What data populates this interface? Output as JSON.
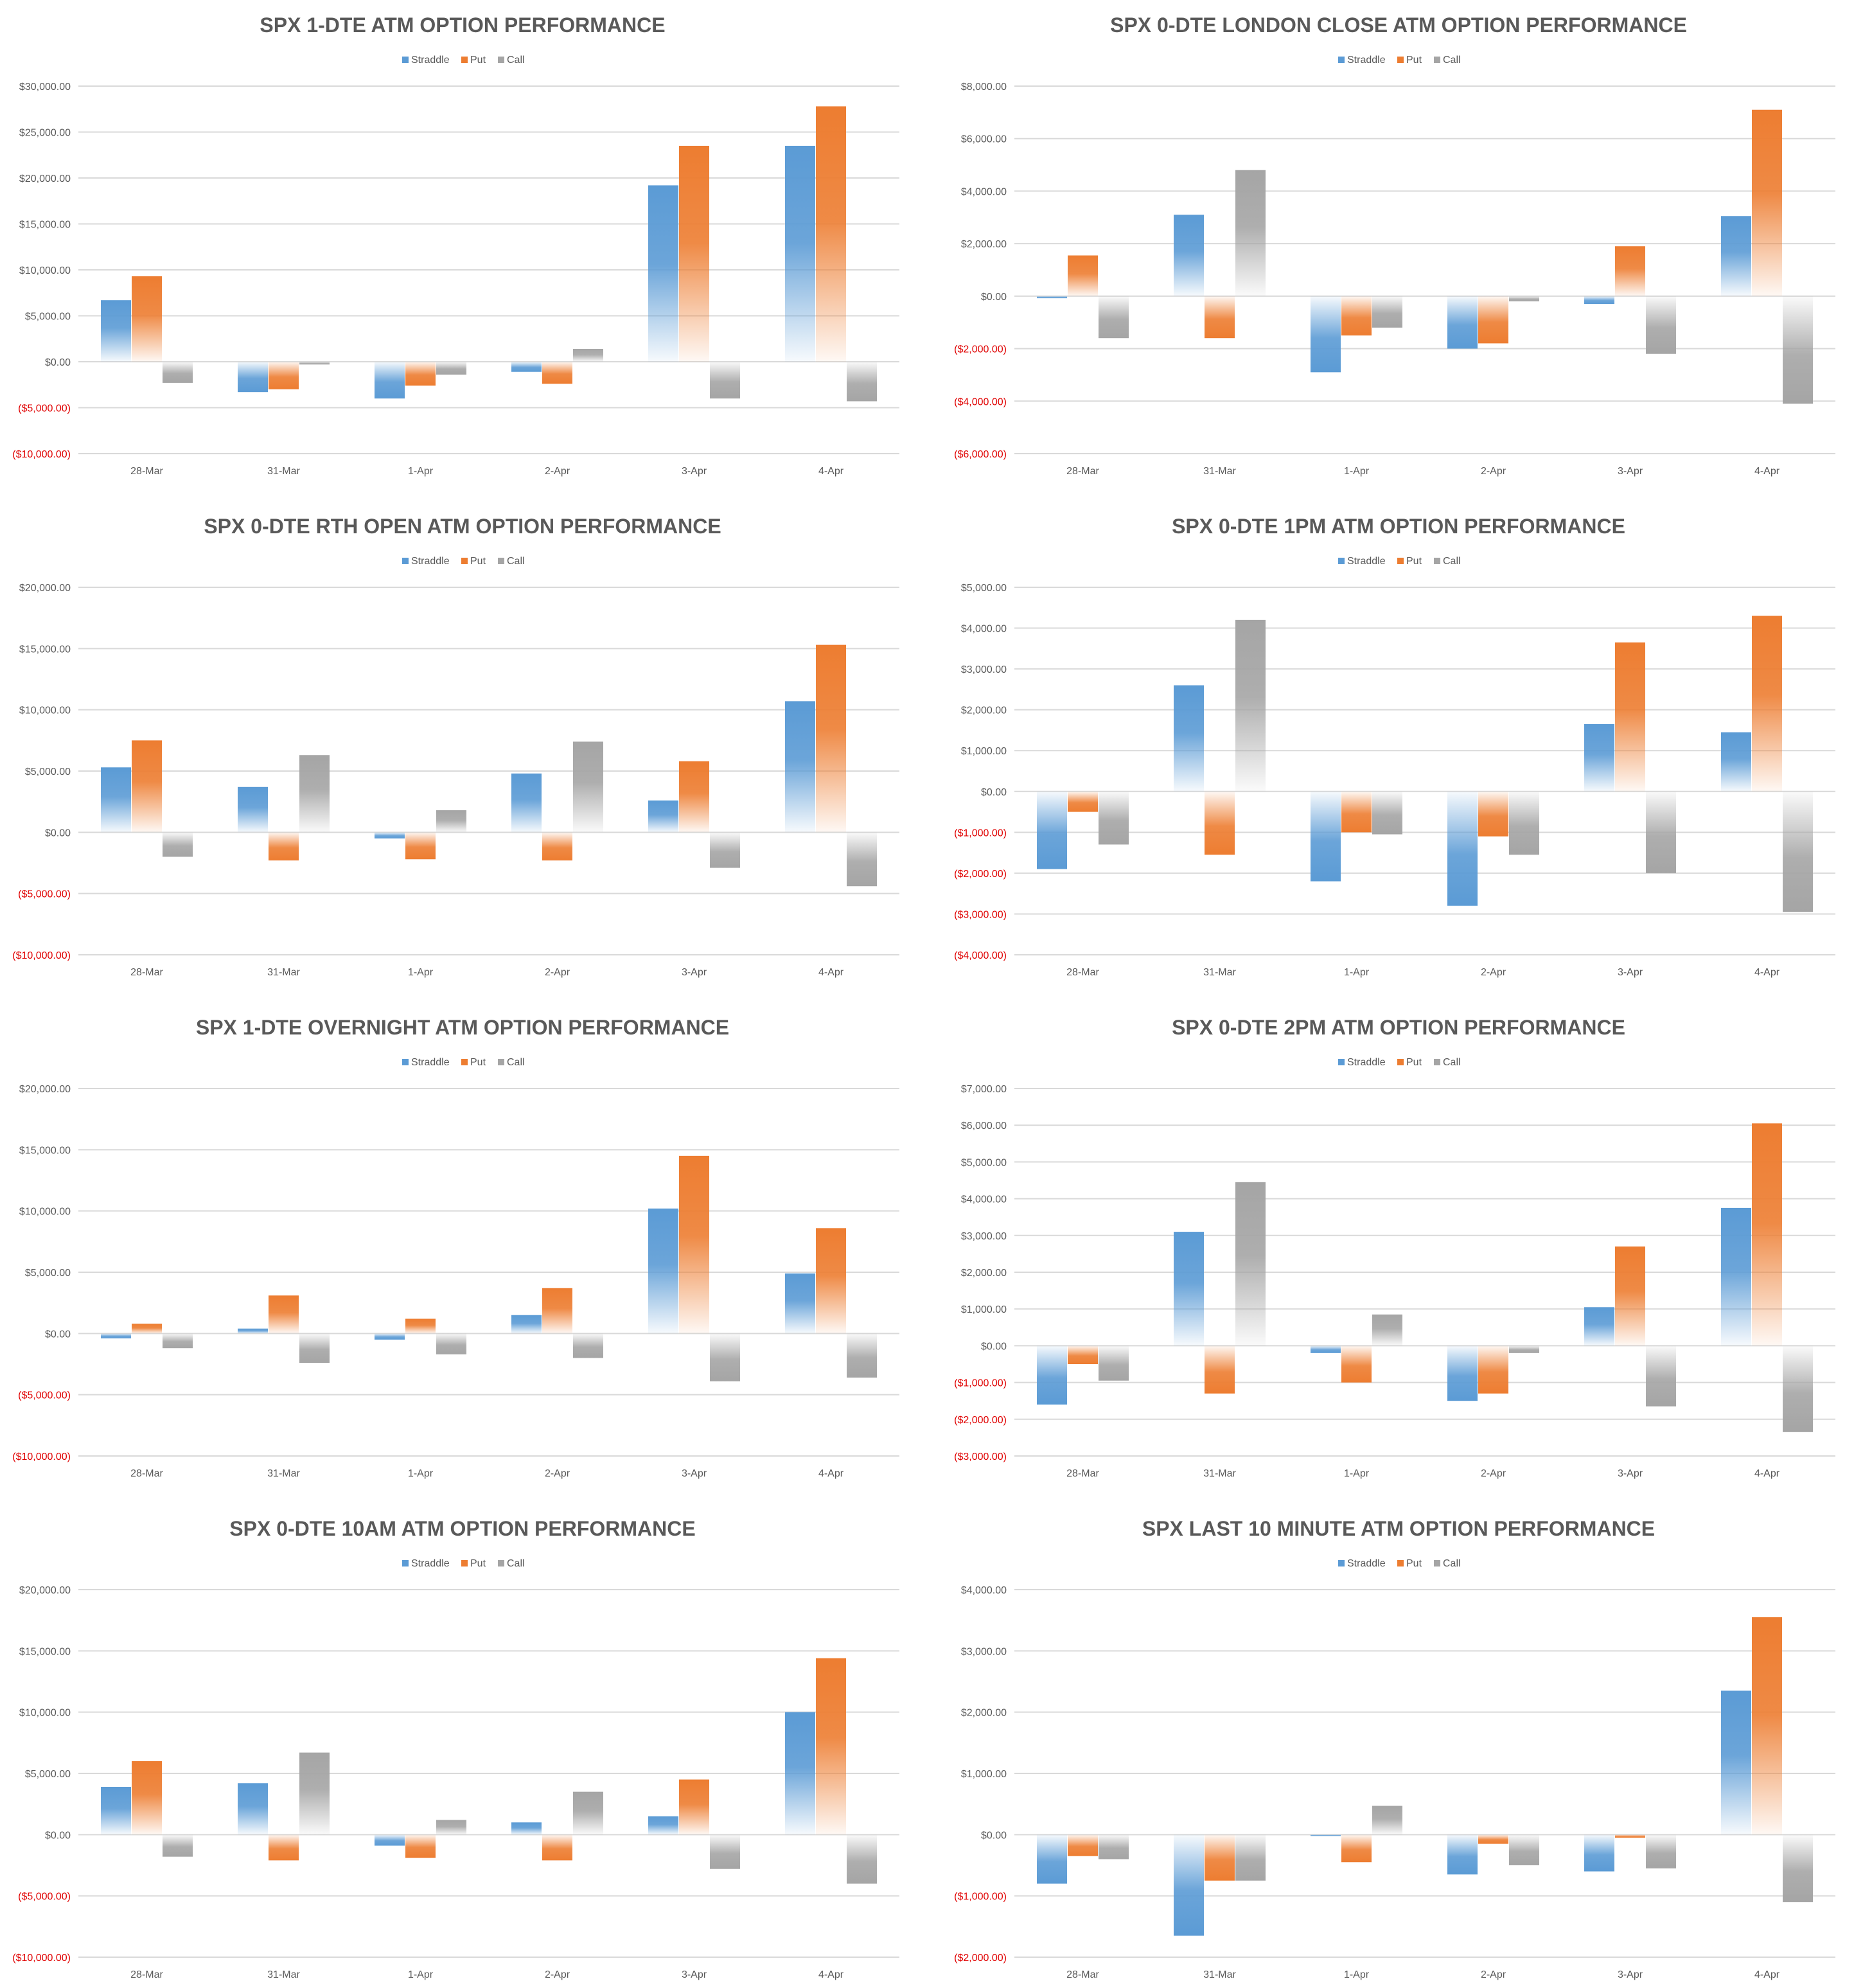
{
  "legend": [
    "Straddle",
    "Put",
    "Call"
  ],
  "colors": {
    "straddle": "#5b9bd5",
    "put": "#ed7d31",
    "call": "#a5a5a5",
    "gridline": "#d9d9d9",
    "text": "#595959",
    "negative_tick": "#e00000"
  },
  "chart_data": [
    {
      "type": "bar",
      "title": "SPX 1-DTE ATM OPTION PERFORMANCE",
      "categories": [
        "28-Mar",
        "31-Mar",
        "1-Apr",
        "2-Apr",
        "3-Apr",
        "4-Apr"
      ],
      "ylim": [
        -10000,
        30000
      ],
      "yticks": [
        30000,
        25000,
        20000,
        15000,
        10000,
        5000,
        0,
        -5000,
        -10000
      ],
      "ytick_labels": [
        "$30,000.00",
        "$25,000.00",
        "$20,000.00",
        "$15,000.00",
        "$10,000.00",
        "$5,000.00",
        "$0.00",
        "($5,000.00)",
        "($10,000.00)"
      ],
      "grid": true,
      "legend_position": "top",
      "series": [
        {
          "name": "Straddle",
          "values": [
            6700,
            -3300,
            -4000,
            -1100,
            19200,
            23500
          ]
        },
        {
          "name": "Put",
          "values": [
            9300,
            -3000,
            -2600,
            -2400,
            23500,
            27800
          ]
        },
        {
          "name": "Call",
          "values": [
            -2300,
            -300,
            -1400,
            1400,
            -4000,
            -4300
          ]
        }
      ]
    },
    {
      "type": "bar",
      "title": "SPX 0-DTE  LONDON CLOSE ATM OPTION PERFORMANCE",
      "categories": [
        "28-Mar",
        "31-Mar",
        "1-Apr",
        "2-Apr",
        "3-Apr",
        "4-Apr"
      ],
      "ylim": [
        -6000,
        8000
      ],
      "yticks": [
        8000,
        6000,
        4000,
        2000,
        0,
        -2000,
        -4000,
        -6000
      ],
      "ytick_labels": [
        "$8,000.00",
        "$6,000.00",
        "$4,000.00",
        "$2,000.00",
        "$0.00",
        "($2,000.00)",
        "($4,000.00)",
        "($6,000.00)"
      ],
      "grid": true,
      "legend_position": "top",
      "series": [
        {
          "name": "Straddle",
          "values": [
            -80,
            3100,
            -2900,
            -2000,
            -300,
            3050
          ]
        },
        {
          "name": "Put",
          "values": [
            1550,
            -1600,
            -1500,
            -1800,
            1900,
            7100
          ]
        },
        {
          "name": "Call",
          "values": [
            -1600,
            4800,
            -1200,
            -200,
            -2200,
            -4100
          ]
        }
      ]
    },
    {
      "type": "bar",
      "title": "SPX 0-DTE RTH OPEN ATM OPTION PERFORMANCE",
      "categories": [
        "28-Mar",
        "31-Mar",
        "1-Apr",
        "2-Apr",
        "3-Apr",
        "4-Apr"
      ],
      "ylim": [
        -10000,
        20000
      ],
      "yticks": [
        20000,
        15000,
        10000,
        5000,
        0,
        -5000,
        -10000
      ],
      "ytick_labels": [
        "$20,000.00",
        "$15,000.00",
        "$10,000.00",
        "$5,000.00",
        "$0.00",
        "($5,000.00)",
        "($10,000.00)"
      ],
      "grid": true,
      "legend_position": "top",
      "series": [
        {
          "name": "Straddle",
          "values": [
            5300,
            3700,
            -500,
            4800,
            2600,
            10700
          ]
        },
        {
          "name": "Put",
          "values": [
            7500,
            -2300,
            -2200,
            -2300,
            5800,
            15300
          ]
        },
        {
          "name": "Call",
          "values": [
            -2000,
            6300,
            1800,
            7400,
            -2900,
            -4400
          ]
        }
      ]
    },
    {
      "type": "bar",
      "title": "SPX 0-DTE 1PM ATM OPTION PERFORMANCE",
      "categories": [
        "28-Mar",
        "31-Mar",
        "1-Apr",
        "2-Apr",
        "3-Apr",
        "4-Apr"
      ],
      "ylim": [
        -4000,
        5000
      ],
      "yticks": [
        5000,
        4000,
        3000,
        2000,
        1000,
        0,
        -1000,
        -2000,
        -3000,
        -4000
      ],
      "ytick_labels": [
        "$5,000.00",
        "$4,000.00",
        "$3,000.00",
        "$2,000.00",
        "$1,000.00",
        "$0.00",
        "($1,000.00)",
        "($2,000.00)",
        "($3,000.00)",
        "($4,000.00)"
      ],
      "grid": true,
      "legend_position": "top",
      "series": [
        {
          "name": "Straddle",
          "values": [
            -1900,
            2600,
            -2200,
            -2800,
            1650,
            1450
          ]
        },
        {
          "name": "Put",
          "values": [
            -500,
            -1550,
            -1000,
            -1100,
            3650,
            4300
          ]
        },
        {
          "name": "Call",
          "values": [
            -1300,
            4200,
            -1050,
            -1550,
            -2000,
            -2950
          ]
        }
      ]
    },
    {
      "type": "bar",
      "title": "SPX 1-DTE OVERNIGHT ATM OPTION PERFORMANCE",
      "categories": [
        "28-Mar",
        "31-Mar",
        "1-Apr",
        "2-Apr",
        "3-Apr",
        "4-Apr"
      ],
      "ylim": [
        -10000,
        20000
      ],
      "yticks": [
        20000,
        15000,
        10000,
        5000,
        0,
        -5000,
        -10000
      ],
      "ytick_labels": [
        "$20,000.00",
        "$15,000.00",
        "$10,000.00",
        "$5,000.00",
        "$0.00",
        "($5,000.00)",
        "($10,000.00)"
      ],
      "grid": true,
      "legend_position": "top",
      "series": [
        {
          "name": "Straddle",
          "values": [
            -400,
            400,
            -500,
            1500,
            10200,
            4900
          ]
        },
        {
          "name": "Put",
          "values": [
            800,
            3100,
            1200,
            3700,
            14500,
            8600
          ]
        },
        {
          "name": "Call",
          "values": [
            -1200,
            -2400,
            -1700,
            -2000,
            -3900,
            -3600
          ]
        }
      ]
    },
    {
      "type": "bar",
      "title": "SPX 0-DTE 2PM ATM OPTION PERFORMANCE",
      "categories": [
        "28-Mar",
        "31-Mar",
        "1-Apr",
        "2-Apr",
        "3-Apr",
        "4-Apr"
      ],
      "ylim": [
        -3000,
        7000
      ],
      "yticks": [
        7000,
        6000,
        5000,
        4000,
        3000,
        2000,
        1000,
        0,
        -1000,
        -2000,
        -3000
      ],
      "ytick_labels": [
        "$7,000.00",
        "$6,000.00",
        "$5,000.00",
        "$4,000.00",
        "$3,000.00",
        "$2,000.00",
        "$1,000.00",
        "$0.00",
        "($1,000.00)",
        "($2,000.00)",
        "($3,000.00)"
      ],
      "grid": true,
      "legend_position": "top",
      "series": [
        {
          "name": "Straddle",
          "values": [
            -1600,
            3100,
            -200,
            -1500,
            1050,
            3750
          ]
        },
        {
          "name": "Put",
          "values": [
            -500,
            -1300,
            -1000,
            -1300,
            2700,
            6050
          ]
        },
        {
          "name": "Call",
          "values": [
            -950,
            4450,
            850,
            -200,
            -1650,
            -2350
          ]
        }
      ]
    },
    {
      "type": "bar",
      "title": "SPX 0-DTE 10AM ATM OPTION PERFORMANCE",
      "categories": [
        "28-Mar",
        "31-Mar",
        "1-Apr",
        "2-Apr",
        "3-Apr",
        "4-Apr"
      ],
      "ylim": [
        -10000,
        20000
      ],
      "yticks": [
        20000,
        15000,
        10000,
        5000,
        0,
        -5000,
        -10000
      ],
      "ytick_labels": [
        "$20,000.00",
        "$15,000.00",
        "$10,000.00",
        "$5,000.00",
        "$0.00",
        "($5,000.00)",
        "($10,000.00)"
      ],
      "grid": true,
      "legend_position": "top",
      "series": [
        {
          "name": "Straddle",
          "values": [
            3900,
            4200,
            -900,
            1000,
            1500,
            10000
          ]
        },
        {
          "name": "Put",
          "values": [
            6000,
            -2100,
            -1900,
            -2100,
            4500,
            14400
          ]
        },
        {
          "name": "Call",
          "values": [
            -1800,
            6700,
            1200,
            3500,
            -2800,
            -4000
          ]
        }
      ]
    },
    {
      "type": "bar",
      "title": "SPX LAST 10 MINUTE ATM OPTION PERFORMANCE",
      "categories": [
        "28-Mar",
        "31-Mar",
        "1-Apr",
        "2-Apr",
        "3-Apr",
        "4-Apr"
      ],
      "ylim": [
        -2000,
        4000
      ],
      "yticks": [
        4000,
        3000,
        2000,
        1000,
        0,
        -1000,
        -2000
      ],
      "ytick_labels": [
        "$4,000.00",
        "$3,000.00",
        "$2,000.00",
        "$1,000.00",
        "$0.00",
        "($1,000.00)",
        "($2,000.00)"
      ],
      "grid": true,
      "legend_position": "top",
      "series": [
        {
          "name": "Straddle",
          "values": [
            -800,
            -1650,
            -20,
            -650,
            -600,
            2350
          ]
        },
        {
          "name": "Put",
          "values": [
            -350,
            -750,
            -450,
            -150,
            -50,
            3550
          ]
        },
        {
          "name": "Call",
          "values": [
            -400,
            -750,
            470,
            -500,
            -550,
            -1100
          ]
        }
      ]
    }
  ]
}
